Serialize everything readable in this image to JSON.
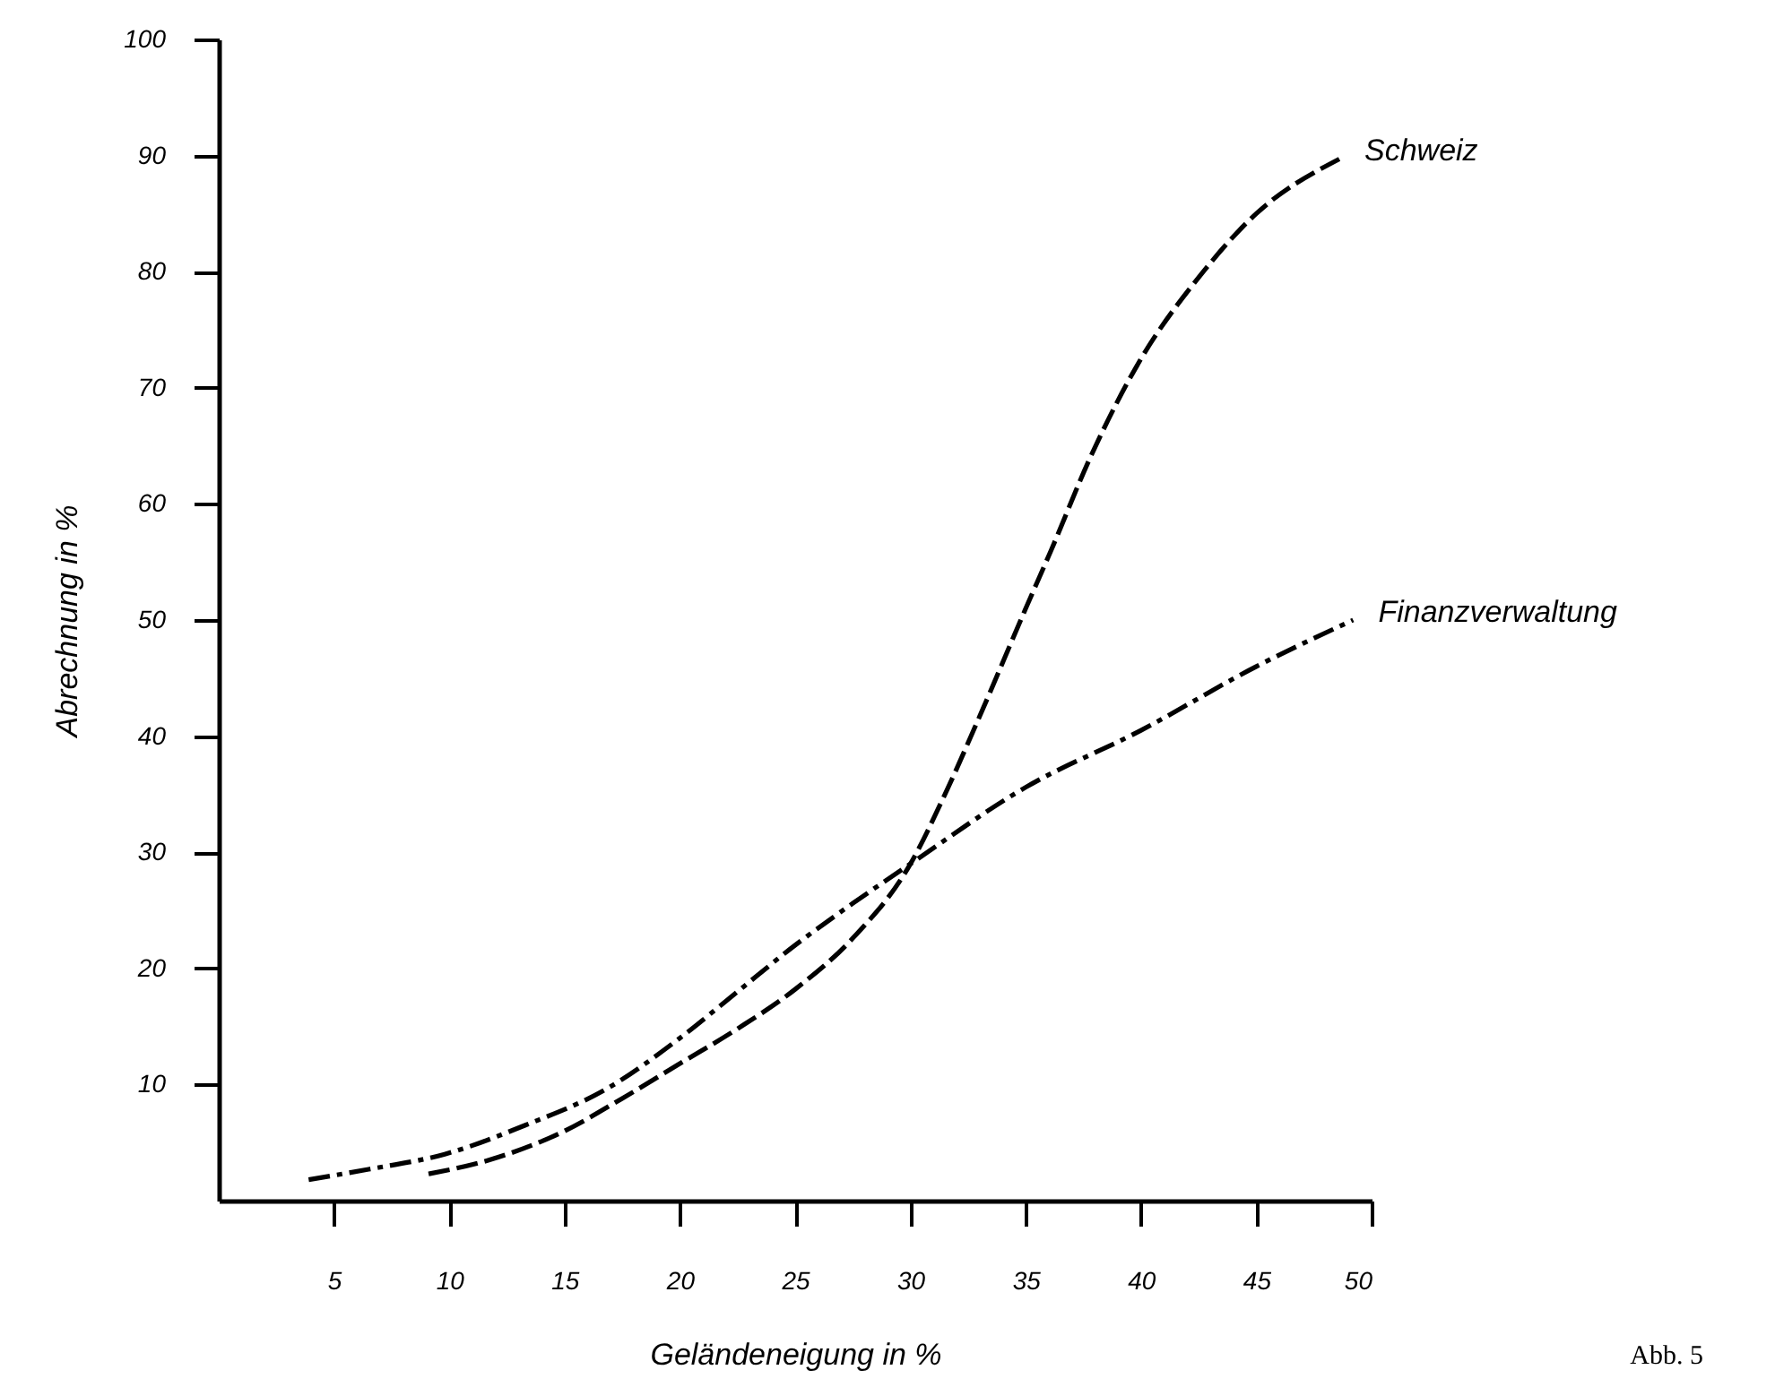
{
  "chart_data": {
    "type": "line",
    "xlabel": "Geländeneigung in %",
    "ylabel": "Abrechnung in %",
    "xlim": [
      0,
      50
    ],
    "ylim": [
      0,
      100
    ],
    "xticks": [
      5,
      10,
      15,
      20,
      25,
      30,
      35,
      40,
      45,
      50
    ],
    "yticks": [
      10,
      20,
      30,
      40,
      50,
      60,
      70,
      80,
      90,
      100
    ],
    "grid": false,
    "annotations": [
      "Abb. 5"
    ],
    "series": [
      {
        "name": "Schweiz",
        "color": "#000000",
        "line_style": "dashed",
        "x": [
          9.1,
          11.9,
          15,
          17.5,
          20,
          22.5,
          25,
          27.5,
          30,
          31.5,
          33,
          35,
          36.1,
          37.8,
          40,
          42.5,
          45,
          48.6
        ],
        "values": [
          2.3,
          3.6,
          6,
          8.8,
          11.8,
          14.8,
          18.2,
          22.6,
          29,
          35,
          41.7,
          51,
          56,
          64,
          72.5,
          79.5,
          85,
          89.7
        ]
      },
      {
        "name": "Finanzverwaltung",
        "color": "#000000",
        "line_style": "dashdot",
        "x": [
          3.9,
          6.5,
          9.8,
          13.3,
          16.8,
          20,
          22.5,
          25,
          27.5,
          30,
          35,
          40,
          45,
          49.2
        ],
        "values": [
          1.8,
          2.7,
          4,
          6.5,
          9.6,
          14,
          18,
          22,
          25.6,
          29,
          35.6,
          40.5,
          46,
          50
        ]
      }
    ]
  }
}
